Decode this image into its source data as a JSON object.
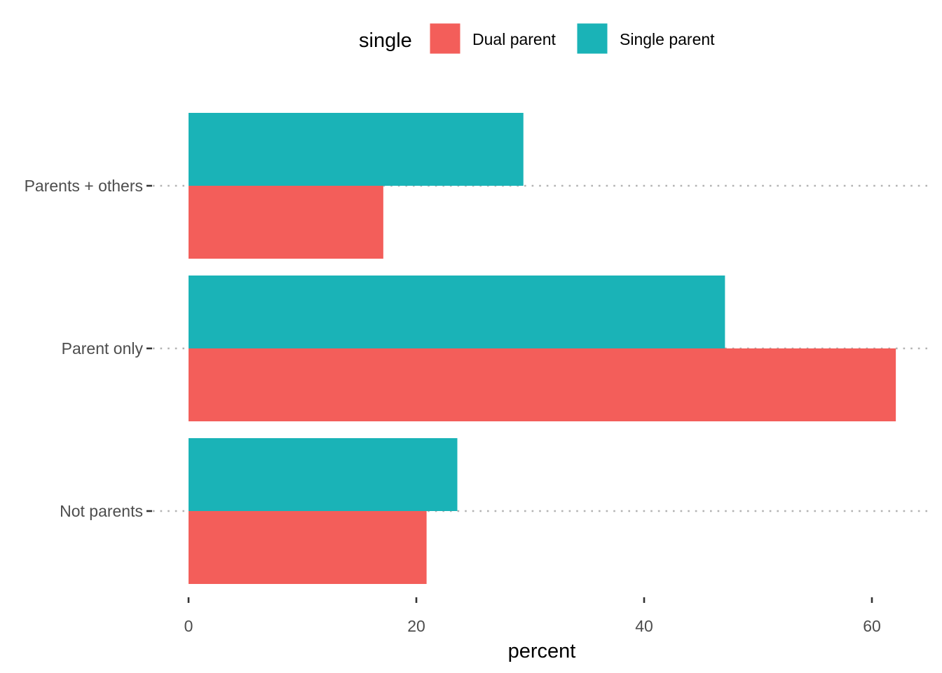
{
  "chart_data": {
    "type": "bar",
    "orientation": "horizontal",
    "categories": [
      "Not parents",
      "Parent only",
      "Parents + others"
    ],
    "series": [
      {
        "name": "Dual parent",
        "color": "#F35E5A",
        "values": [
          20.9,
          62.1,
          17.1
        ]
      },
      {
        "name": "Single parent",
        "color": "#1AB3B7",
        "values": [
          23.6,
          47.1,
          29.4
        ]
      }
    ],
    "legend": {
      "title": "single",
      "position": "top"
    },
    "xlabel": "percent",
    "ylabel": "",
    "xlim": [
      0,
      65
    ],
    "x_ticks": [
      0,
      20,
      40,
      60
    ],
    "grid": "horizontal-dotted"
  }
}
